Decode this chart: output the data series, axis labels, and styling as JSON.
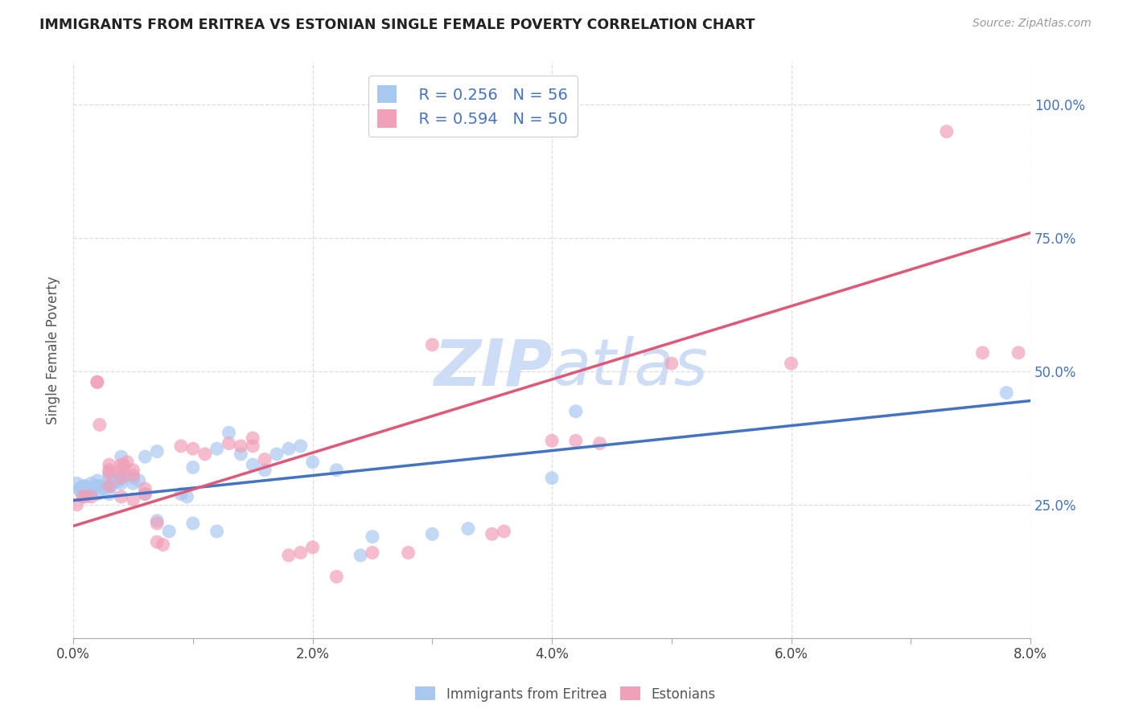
{
  "title": "IMMIGRANTS FROM ERITREA VS ESTONIAN SINGLE FEMALE POVERTY CORRELATION CHART",
  "source": "Source: ZipAtlas.com",
  "ylabel": "Single Female Poverty",
  "y_ticks": [
    0.0,
    0.25,
    0.5,
    0.75,
    1.0
  ],
  "y_tick_labels": [
    "",
    "25.0%",
    "50.0%",
    "75.0%",
    "100.0%"
  ],
  "x_ticks": [
    0.0,
    0.01,
    0.02,
    0.03,
    0.04,
    0.05,
    0.06,
    0.07,
    0.08
  ],
  "x_tick_labels": [
    "0.0%",
    "",
    "2.0%",
    "",
    "4.0%",
    "",
    "6.0%",
    "",
    "8.0%"
  ],
  "legend_blue_r": "R = 0.256",
  "legend_blue_n": "N = 56",
  "legend_pink_r": "R = 0.594",
  "legend_pink_n": "N = 50",
  "blue_color": "#a8c8f0",
  "pink_color": "#f0a0b8",
  "line_blue_color": "#4472c4",
  "line_pink_color": "#e05878",
  "watermark_color": "#ccddf5",
  "blue_scatter": [
    [
      0.0003,
      0.29
    ],
    [
      0.0005,
      0.28
    ],
    [
      0.0006,
      0.275
    ],
    [
      0.0008,
      0.285
    ],
    [
      0.001,
      0.285
    ],
    [
      0.001,
      0.27
    ],
    [
      0.0012,
      0.28
    ],
    [
      0.0013,
      0.27
    ],
    [
      0.0015,
      0.275
    ],
    [
      0.0015,
      0.29
    ],
    [
      0.002,
      0.285
    ],
    [
      0.002,
      0.295
    ],
    [
      0.002,
      0.27
    ],
    [
      0.0022,
      0.285
    ],
    [
      0.0025,
      0.28
    ],
    [
      0.003,
      0.285
    ],
    [
      0.003,
      0.295
    ],
    [
      0.003,
      0.305
    ],
    [
      0.003,
      0.27
    ],
    [
      0.0032,
      0.285
    ],
    [
      0.0035,
      0.295
    ],
    [
      0.0038,
      0.295
    ],
    [
      0.004,
      0.305
    ],
    [
      0.004,
      0.34
    ],
    [
      0.004,
      0.29
    ],
    [
      0.0045,
      0.305
    ],
    [
      0.005,
      0.3
    ],
    [
      0.005,
      0.29
    ],
    [
      0.0055,
      0.295
    ],
    [
      0.006,
      0.34
    ],
    [
      0.006,
      0.27
    ],
    [
      0.007,
      0.35
    ],
    [
      0.007,
      0.22
    ],
    [
      0.008,
      0.2
    ],
    [
      0.009,
      0.27
    ],
    [
      0.0095,
      0.265
    ],
    [
      0.01,
      0.32
    ],
    [
      0.01,
      0.215
    ],
    [
      0.012,
      0.355
    ],
    [
      0.012,
      0.2
    ],
    [
      0.013,
      0.385
    ],
    [
      0.014,
      0.345
    ],
    [
      0.015,
      0.325
    ],
    [
      0.016,
      0.315
    ],
    [
      0.017,
      0.345
    ],
    [
      0.018,
      0.355
    ],
    [
      0.019,
      0.36
    ],
    [
      0.02,
      0.33
    ],
    [
      0.022,
      0.315
    ],
    [
      0.024,
      0.155
    ],
    [
      0.025,
      0.19
    ],
    [
      0.03,
      0.195
    ],
    [
      0.033,
      0.205
    ],
    [
      0.04,
      0.3
    ],
    [
      0.042,
      0.425
    ],
    [
      0.078,
      0.46
    ]
  ],
  "pink_scatter": [
    [
      0.0003,
      0.25
    ],
    [
      0.0008,
      0.265
    ],
    [
      0.001,
      0.265
    ],
    [
      0.0015,
      0.265
    ],
    [
      0.002,
      0.48
    ],
    [
      0.002,
      0.48
    ],
    [
      0.0022,
      0.4
    ],
    [
      0.003,
      0.285
    ],
    [
      0.003,
      0.325
    ],
    [
      0.003,
      0.31
    ],
    [
      0.003,
      0.315
    ],
    [
      0.004,
      0.3
    ],
    [
      0.004,
      0.315
    ],
    [
      0.004,
      0.325
    ],
    [
      0.004,
      0.265
    ],
    [
      0.0042,
      0.325
    ],
    [
      0.0045,
      0.33
    ],
    [
      0.005,
      0.315
    ],
    [
      0.005,
      0.305
    ],
    [
      0.005,
      0.26
    ],
    [
      0.006,
      0.28
    ],
    [
      0.006,
      0.27
    ],
    [
      0.007,
      0.215
    ],
    [
      0.007,
      0.18
    ],
    [
      0.0075,
      0.175
    ],
    [
      0.009,
      0.36
    ],
    [
      0.01,
      0.355
    ],
    [
      0.011,
      0.345
    ],
    [
      0.013,
      0.365
    ],
    [
      0.014,
      0.36
    ],
    [
      0.015,
      0.375
    ],
    [
      0.015,
      0.36
    ],
    [
      0.016,
      0.335
    ],
    [
      0.018,
      0.155
    ],
    [
      0.019,
      0.16
    ],
    [
      0.02,
      0.17
    ],
    [
      0.022,
      0.115
    ],
    [
      0.025,
      0.16
    ],
    [
      0.028,
      0.16
    ],
    [
      0.03,
      0.55
    ],
    [
      0.036,
      0.2
    ],
    [
      0.04,
      0.37
    ],
    [
      0.042,
      0.37
    ],
    [
      0.044,
      0.365
    ],
    [
      0.05,
      0.515
    ],
    [
      0.06,
      0.515
    ],
    [
      0.035,
      0.195
    ],
    [
      0.073,
      0.95
    ],
    [
      0.076,
      0.535
    ],
    [
      0.079,
      0.535
    ]
  ],
  "blue_line": [
    [
      0.0,
      0.258
    ],
    [
      0.08,
      0.445
    ]
  ],
  "pink_line": [
    [
      0.0,
      0.21
    ],
    [
      0.08,
      0.76
    ]
  ]
}
